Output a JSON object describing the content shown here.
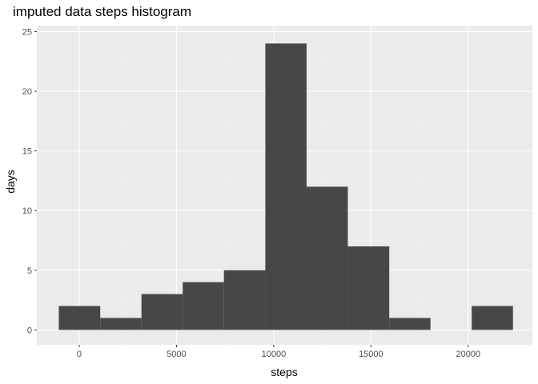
{
  "chart_data": {
    "type": "bar",
    "title": "imputed data steps histogram",
    "xlabel": "steps",
    "ylabel": "days",
    "xlim": [
      -2180,
      23300
    ],
    "ylim": [
      -1.25,
      25.5
    ],
    "x_ticks": [
      0,
      5000,
      10000,
      15000,
      20000
    ],
    "x_tick_labels": [
      "0",
      "5000",
      "10000",
      "15000",
      "20000"
    ],
    "y_ticks": [
      0,
      5,
      10,
      15,
      20,
      25
    ],
    "y_tick_labels": [
      "0",
      "5",
      "10",
      "15",
      "20",
      "25"
    ],
    "bins": [
      {
        "x0": -1050,
        "x1": 1080,
        "count": 2
      },
      {
        "x0": 1080,
        "x1": 3200,
        "count": 1
      },
      {
        "x0": 3200,
        "x1": 5320,
        "count": 3
      },
      {
        "x0": 5320,
        "x1": 7440,
        "count": 4
      },
      {
        "x0": 7440,
        "x1": 9570,
        "count": 5
      },
      {
        "x0": 9570,
        "x1": 11690,
        "count": 24
      },
      {
        "x0": 11690,
        "x1": 13810,
        "count": 12
      },
      {
        "x0": 13810,
        "x1": 15940,
        "count": 7
      },
      {
        "x0": 15940,
        "x1": 18060,
        "count": 1
      },
      {
        "x0": 18060,
        "x1": 20180,
        "count": 0
      },
      {
        "x0": 20180,
        "x1": 22300,
        "count": 2
      }
    ],
    "colors": {
      "panel": "#ebebeb",
      "grid_major": "#ffffff",
      "grid_minor": "#f4f4f4",
      "bar": "#474747",
      "tick": "#333333"
    },
    "grid": true,
    "legend": "none"
  }
}
